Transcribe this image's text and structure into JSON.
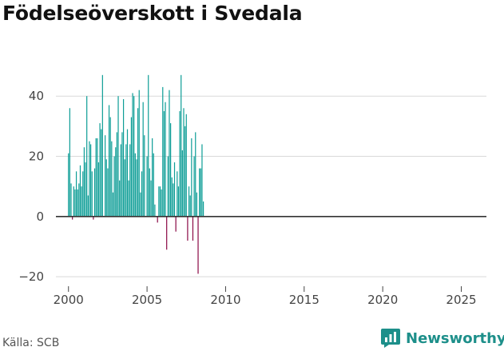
{
  "title": "Födelseöverskott i Svedala",
  "source": "Källa: SCB",
  "brand": "Newsworthy",
  "colors": {
    "positive": "#0f9e97",
    "negative": "#8b0a46",
    "grid": "#d9d9d9",
    "zero_line": "#333333",
    "brand": "#1d8f8a"
  },
  "chart_data": {
    "type": "bar",
    "title": "Födelseöverskott i Svedala",
    "xlabel": "",
    "ylabel": "",
    "frequency": "monthly (one bar per month)",
    "first_bar": "2000-01",
    "ylim": [
      -25,
      52
    ],
    "yticks": [
      -20,
      0,
      20,
      40
    ],
    "ytick_labels": [
      "−20",
      "0",
      "20",
      "40"
    ],
    "xlim": [
      1999.2,
      2026.6
    ],
    "xticks": [
      2000,
      2005,
      2010,
      2015,
      2020,
      2025
    ],
    "xtick_labels": [
      "2000",
      "2005",
      "2010",
      "2015",
      "2020",
      "2025"
    ],
    "grid": true,
    "values": [
      21,
      36,
      11,
      -1,
      10,
      9,
      15,
      9,
      11,
      17,
      10,
      15,
      23,
      18,
      40,
      7,
      25,
      24,
      15,
      -1,
      16,
      26,
      26,
      18,
      31,
      29,
      47,
      0,
      27,
      19,
      16,
      37,
      33,
      25,
      8,
      20,
      23,
      28,
      40,
      12,
      24,
      28,
      39,
      19,
      24,
      29,
      12,
      24,
      33,
      41,
      40,
      21,
      19,
      36,
      42,
      8,
      15,
      38,
      27,
      0,
      20,
      47,
      16,
      12,
      26,
      21,
      4,
      0,
      -2,
      10,
      10,
      9,
      43,
      35,
      38,
      -11,
      20,
      42,
      31,
      13,
      11,
      18,
      -5,
      15,
      10,
      35,
      47,
      22,
      36,
      30,
      34,
      -8,
      10,
      7,
      26,
      -8,
      20,
      28,
      8,
      -19,
      16,
      16,
      24,
      5
    ]
  }
}
